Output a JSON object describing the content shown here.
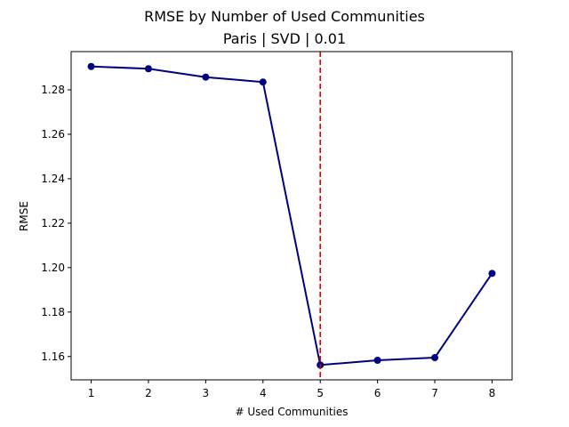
{
  "chart_data": {
    "type": "line",
    "title": "RMSE by Number of Used Communities",
    "subtitle": "Paris | SVD | 0.01",
    "xlabel": "# Used Communities",
    "ylabel": "RMSE",
    "x": [
      1,
      2,
      3,
      4,
      5,
      6,
      7,
      8
    ],
    "series": [
      {
        "values": [
          1.2905,
          1.2895,
          1.2857,
          1.2835,
          1.1562,
          1.1583,
          1.1595,
          1.1974
        ],
        "color": "#000080",
        "marker": "circle"
      }
    ],
    "xlim": [
      0.65,
      8.35
    ],
    "ylim": [
      1.1495,
      1.2972
    ],
    "xticks": [
      1,
      2,
      3,
      4,
      5,
      6,
      7,
      8
    ],
    "yticks": [
      1.16,
      1.18,
      1.2,
      1.22,
      1.24,
      1.26,
      1.28
    ],
    "ytick_labels": [
      "1.16",
      "1.18",
      "1.20",
      "1.22",
      "1.24",
      "1.26",
      "1.28"
    ],
    "reference_line": {
      "x": 5,
      "color": "#e00000",
      "style": "dashed"
    },
    "grid": false
  }
}
